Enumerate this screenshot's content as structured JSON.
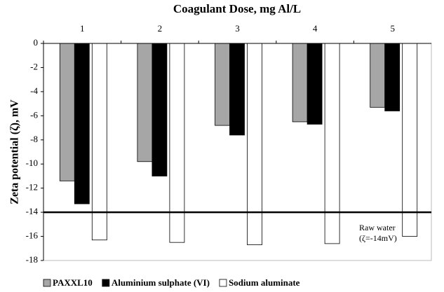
{
  "chart_data": {
    "type": "bar",
    "title": "Coagulant Dose, mg Al/L",
    "y_label": "Zeta potential (ζ), mV",
    "categories": [
      "1",
      "2",
      "3",
      "4",
      "5"
    ],
    "series": [
      {
        "name": "PAXXL10",
        "color": "#a6a6a6",
        "values": [
          -11.4,
          -9.8,
          -6.8,
          -6.5,
          -5.3
        ]
      },
      {
        "name": "Aluminium sulphate (VI)",
        "color": "#000000",
        "values": [
          -13.3,
          -11.0,
          -7.6,
          -6.7,
          -5.6
        ]
      },
      {
        "name": "Sodium aluminate",
        "color": "#ffffff",
        "values": [
          -16.3,
          -16.5,
          -16.7,
          -16.6,
          -16.0
        ]
      }
    ],
    "reference_line": {
      "value": -14
    },
    "annotations": [
      "Raw water",
      "(ζ=-14mV)"
    ],
    "ylim": [
      -18,
      0
    ],
    "yticks": [
      0,
      -2,
      -4,
      -6,
      -8,
      -10,
      -12,
      -14,
      -16,
      -18
    ],
    "legend": "bottom",
    "grid": false
  }
}
